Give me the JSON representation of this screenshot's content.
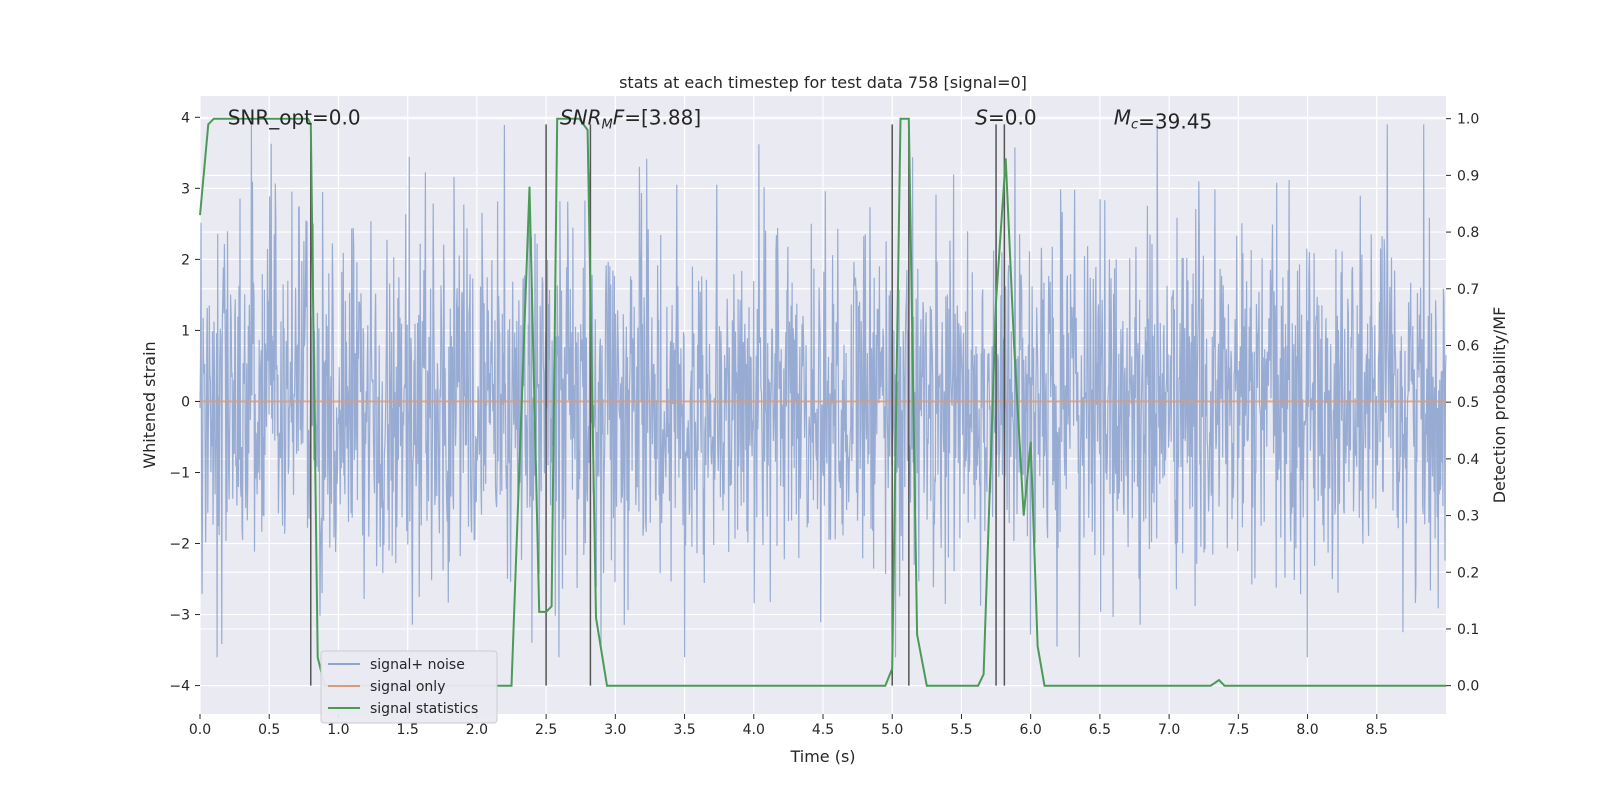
{
  "chart_data": {
    "type": "line",
    "title": "stats at each timestep for test data 758 [signal=0]",
    "xlabel": "Time (s)",
    "ylabel": "Whitened strain",
    "ylabel_right": "Detection probability/MF",
    "xlim": [
      0.0,
      9.0
    ],
    "ylim": [
      -4.4,
      4.3
    ],
    "ylim_right": [
      -0.05,
      1.04
    ],
    "x_ticks": [
      "0.0",
      "0.5",
      "1.0",
      "1.5",
      "2.0",
      "2.5",
      "3.0",
      "3.5",
      "4.0",
      "4.5",
      "5.0",
      "5.5",
      "6.0",
      "6.5",
      "7.0",
      "7.5",
      "8.0",
      "8.5"
    ],
    "y_ticks": [
      "4",
      "3",
      "2",
      "1",
      "0",
      "−1",
      "−2",
      "−3",
      "−4"
    ],
    "y_ticks_right": [
      "1.0",
      "0.9",
      "0.8",
      "0.7",
      "0.6",
      "0.5",
      "0.4",
      "0.3",
      "0.2",
      "0.1",
      "0.0"
    ],
    "grid": true,
    "legend_position": "lower-left",
    "annotations": [
      {
        "id": "snr-opt",
        "text": "SNR_opt=0.0",
        "x": 0.2,
        "y": 4.0
      },
      {
        "id": "snr-mf",
        "text": "SNR_MF=[3.88]",
        "x": 2.6,
        "y": 4.0
      },
      {
        "id": "s-value",
        "text": "S=0.0",
        "x": 5.6,
        "y": 4.0
      },
      {
        "id": "mc-value",
        "text": "M_c=39.45",
        "x": 6.6,
        "y": 4.0
      }
    ],
    "vertical_lines": [
      0.8,
      2.5,
      2.82,
      5.0,
      5.12,
      5.75,
      5.81
    ],
    "series": [
      {
        "name": "signal+ noise",
        "color": "#8fa5cf",
        "description": "whitened noise, samples between about -3.6 and 3.9 over 0-9 s"
      },
      {
        "name": "signal only",
        "color": "#dd9a78",
        "description": "flat at 0",
        "values_constant": 0
      },
      {
        "name": "signal statistics",
        "color": "#4c9a58",
        "axis": "right",
        "x": [
          0.0,
          0.06,
          0.1,
          0.14,
          0.5,
          0.78,
          0.8,
          0.85,
          0.9,
          2.0,
          2.25,
          2.38,
          2.45,
          2.5,
          2.54,
          2.58,
          2.74,
          2.8,
          2.86,
          2.94,
          3.0,
          3.5,
          4.0,
          4.95,
          5.0,
          5.06,
          5.08,
          5.12,
          5.18,
          5.25,
          5.3,
          5.62,
          5.66,
          5.75,
          5.82,
          5.88,
          5.95,
          6.0,
          6.05,
          6.1,
          6.7,
          6.8,
          6.9,
          7.3,
          7.36,
          7.4,
          7.5,
          9.0
        ],
        "values": [
          0.83,
          0.99,
          1.0,
          1.0,
          1.0,
          1.0,
          0.99,
          0.05,
          0.0,
          0.0,
          0.0,
          0.88,
          0.13,
          0.13,
          0.14,
          1.0,
          1.0,
          0.98,
          0.12,
          0.0,
          0.0,
          0.0,
          0.0,
          0.0,
          0.03,
          1.0,
          1.0,
          1.0,
          0.09,
          0.0,
          0.0,
          0.0,
          0.02,
          0.68,
          0.93,
          0.6,
          0.3,
          0.43,
          0.07,
          0.0,
          0.0,
          0.0,
          0.0,
          0.0,
          0.01,
          0.0,
          0.0,
          0.0
        ]
      }
    ]
  }
}
